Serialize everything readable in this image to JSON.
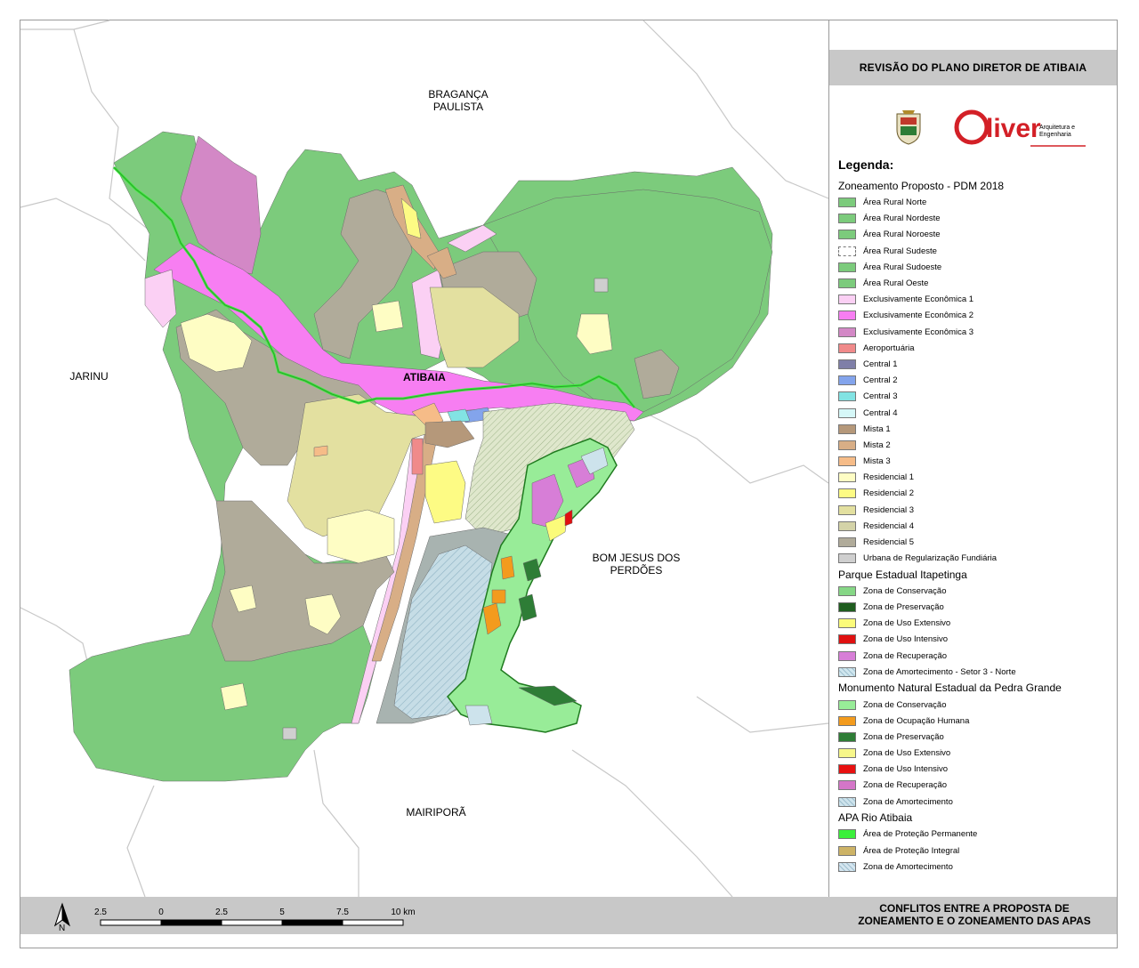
{
  "header": {
    "title": "REVISÃO DO PLANO DIRETOR DE ATIBAIA"
  },
  "logos": {
    "crest_icon": "municipal-crest",
    "brand": "Oliver",
    "brand_sub_1": "Arquitetura e",
    "brand_sub_2": "Engenharia",
    "brand_color": "#d32027"
  },
  "legend": {
    "heading": "Legenda:",
    "groups": [
      {
        "title": "Zoneamento Proposto - PDM 2018",
        "items": [
          {
            "label": "Área Rural Norte",
            "color": "#7ccb7c"
          },
          {
            "label": "Área Rural Nordeste",
            "color": "#7ccb7c"
          },
          {
            "label": "Área Rural Noroeste",
            "color": "#7ccb7c"
          },
          {
            "label": "Área Rural Sudeste",
            "color": "#ffffff"
          },
          {
            "label": "Área Rural Sudoeste",
            "color": "#7ccb7c"
          },
          {
            "label": "Área Rural Oeste",
            "color": "#7ccb7c"
          },
          {
            "label": "Exclusivamente Econômica 1",
            "color": "#fbd0f4"
          },
          {
            "label": "Exclusivamente Econômica 2",
            "color": "#f77ef2"
          },
          {
            "label": "Exclusivamente Econômica 3",
            "color": "#d388c6"
          },
          {
            "label": "Aeroportuária",
            "color": "#f08a8a"
          },
          {
            "label": "Central 1",
            "color": "#7f7fa8"
          },
          {
            "label": "Central 2",
            "color": "#83a4ec"
          },
          {
            "label": "Central 3",
            "color": "#82e3e3"
          },
          {
            "label": "Central 4",
            "color": "#d6f8f8"
          },
          {
            "label": "Mista 1",
            "color": "#b5987a"
          },
          {
            "label": "Mista 2",
            "color": "#d8ae86"
          },
          {
            "label": "Mista 3",
            "color": "#f6bc88"
          },
          {
            "label": "Residencial 1",
            "color": "#fefdc4"
          },
          {
            "label": "Residencial 2",
            "color": "#fdfb84"
          },
          {
            "label": "Residencial 3",
            "color": "#e3e0a0"
          },
          {
            "label": "Residencial 4",
            "color": "#d4d3a8"
          },
          {
            "label": "Residencial 5",
            "color": "#b0ab9a"
          },
          {
            "label": "Urbana de Regularização Fundiária",
            "color": "#cfcfcf"
          }
        ]
      },
      {
        "title": "Parque Estadual Itapetinga",
        "items": [
          {
            "label": "Zona de Conservação",
            "color": "#86d786"
          },
          {
            "label": "Zona de Preservação",
            "color": "#1f5d1f"
          },
          {
            "label": "Zona de Uso Extensivo",
            "color": "#fbfb7a"
          },
          {
            "label": "Zona de Uso Intensivo",
            "color": "#e01010"
          },
          {
            "label": "Zona de Recuperação",
            "color": "#d77ed7"
          },
          {
            "label": "Zona de Amortecimento - Setor 3 - Norte",
            "color": "#cfe6ee"
          }
        ]
      },
      {
        "title": "Monumento Natural Estadual da Pedra Grande",
        "items": [
          {
            "label": "Zona de Conservação",
            "color": "#98ec98"
          },
          {
            "label": "Zona de Ocupação Humana",
            "color": "#f39b1d"
          },
          {
            "label": "Zona de Preservação",
            "color": "#2e7d36"
          },
          {
            "label": "Zona de Uso Extensivo",
            "color": "#f7f78a"
          },
          {
            "label": "Zona de Uso Intensivo",
            "color": "#e81010"
          },
          {
            "label": "Zona de Recuperação",
            "color": "#d476c8"
          },
          {
            "label": "Zona de Amortecimento",
            "color": "#cde3ec"
          }
        ]
      },
      {
        "title": "APA Rio Atibaia",
        "items": [
          {
            "label": "Área de Proteção Permanente",
            "color": "#3bf03b"
          },
          {
            "label": "Área de Proteção Integral",
            "color": "#cdb366"
          },
          {
            "label": "Zona de Amortecimento",
            "color": "#d4e5ef"
          }
        ]
      }
    ]
  },
  "map_labels": {
    "north_neighbor_1": "BRAGANÇA",
    "north_neighbor_2": "PAULISTA",
    "west_neighbor": "JARINU",
    "east_neighbor_1": "BOM JESUS DOS",
    "east_neighbor_2": "PERDÕES",
    "south_neighbor": "MAIRIPORÃ",
    "city": "ATIBAIA"
  },
  "scale_bar": {
    "ticks": [
      "2.5",
      "0",
      "2.5",
      "5",
      "7.5",
      "10 km"
    ],
    "north_letter": "N"
  },
  "footer": {
    "title_line_1": "CONFLITOS ENTRE A PROPOSTA DE",
    "title_line_2": "ZONEAMENTO E O ZONEAMENTO DAS APAS"
  }
}
